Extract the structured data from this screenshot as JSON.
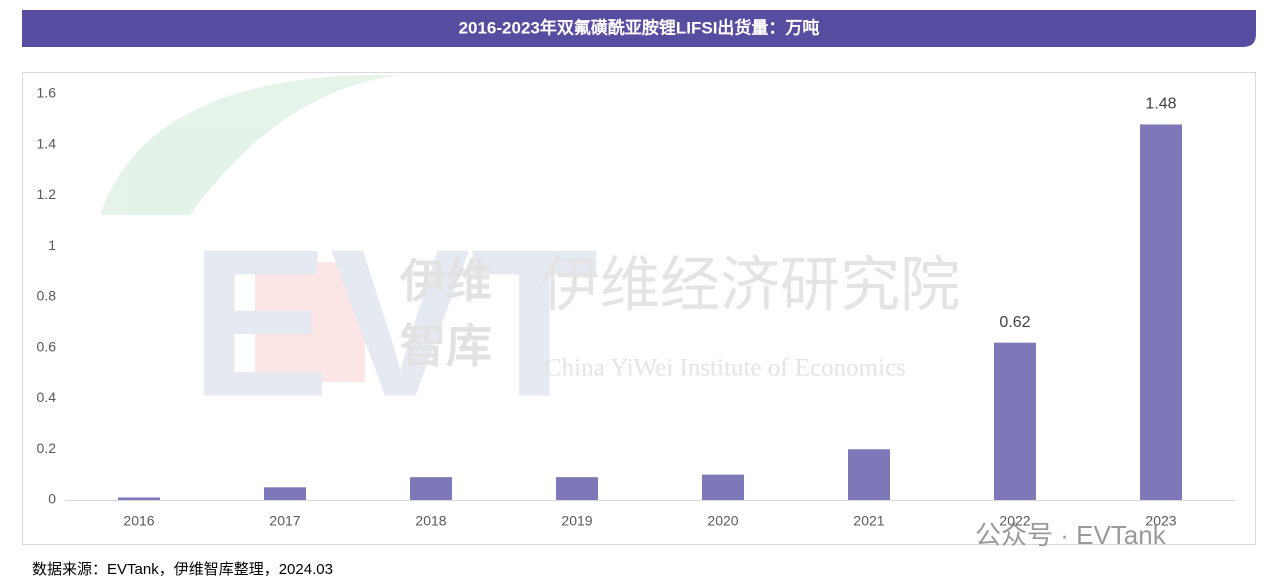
{
  "chart_data": {
    "type": "bar",
    "title": "2016-2023年双氟磺酰亚胺锂LIFSI出货量：万吨",
    "categories": [
      "2016",
      "2017",
      "2018",
      "2019",
      "2020",
      "2021",
      "2022",
      "2023"
    ],
    "values": [
      0.01,
      0.05,
      0.09,
      0.09,
      0.1,
      0.2,
      0.62,
      1.48
    ],
    "value_labels": [
      null,
      null,
      null,
      null,
      null,
      null,
      "0.62",
      "1.48"
    ],
    "color": "#7d79b9",
    "ylim": [
      0,
      1.6
    ],
    "yticks": [
      0,
      0.2,
      0.4,
      0.6,
      0.8,
      1,
      1.2,
      1.4,
      1.6
    ],
    "grid": false,
    "source": "数据来源：EVTank，伊维智库整理，2024.03",
    "watermarks": [
      "伊维经济研究院",
      "China YiWei Institute of Economics",
      "伊维",
      "智库",
      "公众号 · EVTank"
    ]
  }
}
